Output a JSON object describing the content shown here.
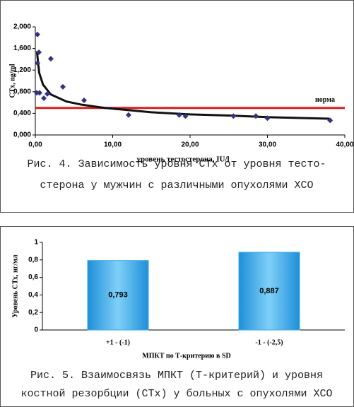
{
  "chart_data": [
    {
      "type": "scatter",
      "x_label": "уровень тестостерона, IU/l",
      "y_label": "CTx, ng/ml",
      "x": [
        0.18,
        0.27,
        0.27,
        0.46,
        0.55,
        1.1,
        1.55,
        2.0,
        3.56,
        6.3,
        12.05,
        18.6,
        19.4,
        25.6,
        28.5,
        30.0,
        38.1
      ],
      "values": [
        0.78,
        1.86,
        1.33,
        1.53,
        0.78,
        0.68,
        0.76,
        1.41,
        0.89,
        0.64,
        0.37,
        0.37,
        0.35,
        0.35,
        0.35,
        0.31,
        0.27
      ],
      "color": "#33337f",
      "trendline": {
        "x": [
          0.2,
          0.5,
          1,
          2,
          4,
          6,
          9,
          15,
          20,
          25,
          30,
          38
        ],
        "values": [
          1.55,
          1.15,
          0.93,
          0.75,
          0.62,
          0.56,
          0.5,
          0.42,
          0.38,
          0.36,
          0.33,
          0.3
        ],
        "color": "#111111"
      },
      "reference_line": {
        "value": 0.5,
        "label": "норма",
        "color": "#d62020"
      },
      "xlim": [
        0,
        40
      ],
      "xticks": [
        {
          "value": 0,
          "label": "0,00"
        },
        {
          "value": 10,
          "label": "10,00"
        },
        {
          "value": 20,
          "label": "20,00"
        },
        {
          "value": 30,
          "label": "30,00"
        },
        {
          "value": 40,
          "label": "40,00"
        }
      ],
      "ylim": [
        0,
        2
      ],
      "yticks": [
        {
          "value": 0,
          "label": "0,000"
        },
        {
          "value": 0.4,
          "label": "0,400"
        },
        {
          "value": 0.8,
          "label": "0,800"
        },
        {
          "value": 1.2,
          "label": "1,200"
        },
        {
          "value": 1.6,
          "label": "1,600"
        },
        {
          "value": 2,
          "label": "2,000"
        }
      ],
      "caption": [
        "Рис. 4. Зависимость уровня СТх от уровня тесто-",
        "стерона у мужчин с различными опухолями ХСО"
      ]
    },
    {
      "type": "bar",
      "x_label": "МПКТ по Т-критерию в SD",
      "y_label": "Уровень СТх, нг/мл",
      "categories": [
        "+1 - (-1)",
        "-1 - (-2,5)"
      ],
      "values": [
        0.793,
        0.887
      ],
      "value_labels": [
        "0,793",
        "0,887"
      ],
      "color": "#3aa8e8",
      "ylim": [
        0,
        1
      ],
      "yticks": [
        0,
        {
          "value": 0.2,
          "label": "0,2"
        },
        {
          "value": 0.4,
          "label": "0,4"
        },
        {
          "value": 0.6,
          "label": "0,6"
        },
        {
          "value": 0.8,
          "label": "0,8"
        },
        1
      ],
      "caption": [
        "Рис. 5. Взаимосвязь МПКТ (Т-критерий) и уровня",
        "костной резорбции (СТх) у больных с опухолями ХСО"
      ]
    }
  ]
}
